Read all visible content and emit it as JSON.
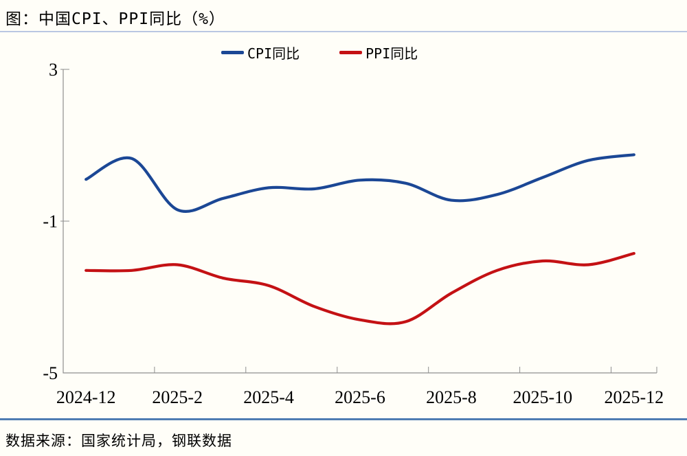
{
  "page": {
    "title": "图：中国CPI、PPI同比（%）",
    "source_note": "数据来源：国家统计局，钢联数据"
  },
  "colors": {
    "background": "#FFFEF8",
    "cpi_line": "#1B4795",
    "ppi_line": "#C41114",
    "axis": "#8E8E8E",
    "title_rule": "#B9C7E2",
    "footer_rule": "#4E7CB2",
    "text": "#000000"
  },
  "chart_data": {
    "type": "line",
    "title": "图：中国CPI、PPI同比（%）",
    "xlabel": "",
    "ylabel": "",
    "x": [
      "2024-12",
      "2025-1",
      "2025-2",
      "2025-3",
      "2025-4",
      "2025-5",
      "2025-6",
      "2025-7",
      "2025-8",
      "2025-9",
      "2025-10",
      "2025-11",
      "2025-12"
    ],
    "x_tick_labels": [
      "2024-12",
      "2025-2",
      "2025-4",
      "2025-6",
      "2025-8",
      "2025-10",
      "2025-12"
    ],
    "ylim": [
      -5,
      3
    ],
    "y_ticks": [
      3,
      -1,
      -5
    ],
    "grid": false,
    "legend_position": "top-center",
    "smoothed": true,
    "series": [
      {
        "name": "CPI同比",
        "color": "#1B4795",
        "values": [
          0.1,
          0.65,
          -0.7,
          -0.4,
          -0.12,
          -0.15,
          0.08,
          0.0,
          -0.45,
          -0.3,
          0.15,
          0.6,
          0.75
        ]
      },
      {
        "name": "PPI同比",
        "color": "#C41114",
        "values": [
          -2.3,
          -2.3,
          -2.15,
          -2.5,
          -2.7,
          -3.25,
          -3.6,
          -3.65,
          -2.9,
          -2.3,
          -2.05,
          -2.15,
          -1.85
        ]
      }
    ]
  }
}
